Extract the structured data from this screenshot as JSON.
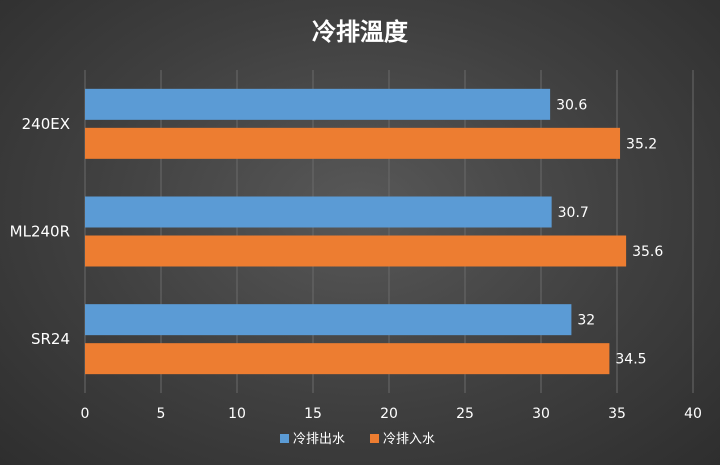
{
  "chart_data": {
    "type": "bar",
    "orientation": "horizontal",
    "title": "冷排溫度",
    "categories": [
      "240EX",
      "ML240R",
      "SR24"
    ],
    "series": [
      {
        "name": "冷排出水",
        "color": "#5b9bd5",
        "values": [
          30.6,
          30.7,
          32
        ]
      },
      {
        "name": "冷排入水",
        "color": "#ed7d31",
        "values": [
          35.2,
          35.6,
          34.5
        ]
      }
    ],
    "xlim": [
      0,
      40
    ],
    "xticks": [
      0,
      5,
      10,
      15,
      20,
      25,
      30,
      35,
      40
    ],
    "grid": true,
    "legend_position": "bottom"
  }
}
